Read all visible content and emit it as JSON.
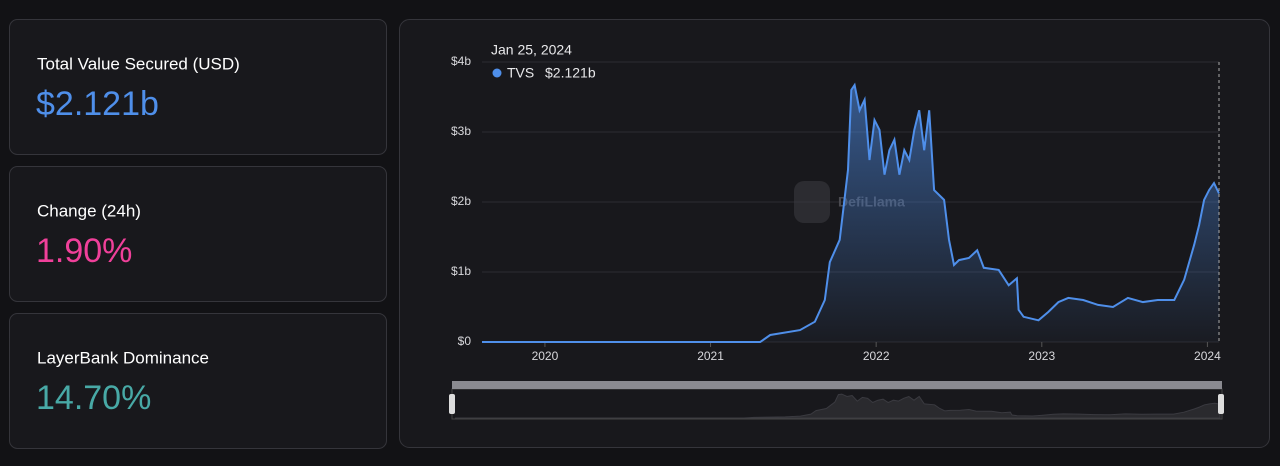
{
  "cards": [
    {
      "title": "Total Value Secured (USD)",
      "value": "$2.121b",
      "color": "#4f8fea"
    },
    {
      "title": "Change (24h)",
      "value": "1.90%",
      "color": "#f0409a"
    },
    {
      "title": "LayerBank Dominance",
      "value": "14.70%",
      "color": "#48a9a6"
    }
  ],
  "watermark": "DefiLlama",
  "tooltip": {
    "date": "Jan 25, 2024",
    "name": "TVS",
    "value": "$2.121b"
  },
  "chart_data": {
    "type": "area",
    "xlim": [
      2019.62,
      2024.07
    ],
    "xticks": [
      2020,
      2021,
      2022,
      2023,
      2024
    ],
    "ylim": [
      0,
      4
    ],
    "yticks": [
      {
        "value": 0,
        "label": "$0"
      },
      {
        "value": 1,
        "label": "$1b"
      },
      {
        "value": 2,
        "label": "$2b"
      },
      {
        "value": 3,
        "label": "$3b"
      },
      {
        "value": 4,
        "label": "$4b"
      }
    ],
    "grid": true,
    "series": [
      {
        "name": "TVS",
        "color": "#4f8fea",
        "x": [
          2019.62,
          2021.3,
          2021.36,
          2021.54,
          2021.63,
          2021.69,
          2021.72,
          2021.78,
          2021.83,
          2021.85,
          2021.87,
          2021.9,
          2021.93,
          2021.96,
          2021.99,
          2022.02,
          2022.05,
          2022.08,
          2022.11,
          2022.14,
          2022.17,
          2022.2,
          2022.23,
          2022.26,
          2022.29,
          2022.32,
          2022.35,
          2022.41,
          2022.44,
          2022.47,
          2022.5,
          2022.56,
          2022.61,
          2022.65,
          2022.74,
          2022.8,
          2022.85,
          2022.86,
          2022.89,
          2022.98,
          2023.04,
          2023.1,
          2023.16,
          2023.25,
          2023.34,
          2023.43,
          2023.52,
          2023.61,
          2023.7,
          2023.8,
          2023.86,
          2023.92,
          2023.95,
          2023.98,
          2024.01,
          2024.04,
          2024.07
        ],
        "values": [
          0,
          0,
          0.1,
          0.17,
          0.29,
          0.6,
          1.14,
          1.46,
          2.46,
          3.6,
          3.67,
          3.31,
          3.46,
          2.6,
          3.17,
          3.03,
          2.39,
          2.74,
          2.89,
          2.39,
          2.74,
          2.6,
          3.03,
          3.31,
          2.74,
          3.31,
          2.17,
          2.03,
          1.46,
          1.1,
          1.17,
          1.2,
          1.31,
          1.06,
          1.03,
          0.81,
          0.91,
          0.46,
          0.36,
          0.31,
          0.43,
          0.57,
          0.63,
          0.6,
          0.53,
          0.5,
          0.63,
          0.57,
          0.6,
          0.6,
          0.89,
          1.39,
          1.67,
          2.03,
          2.17,
          2.27,
          2.121
        ]
      }
    ]
  }
}
